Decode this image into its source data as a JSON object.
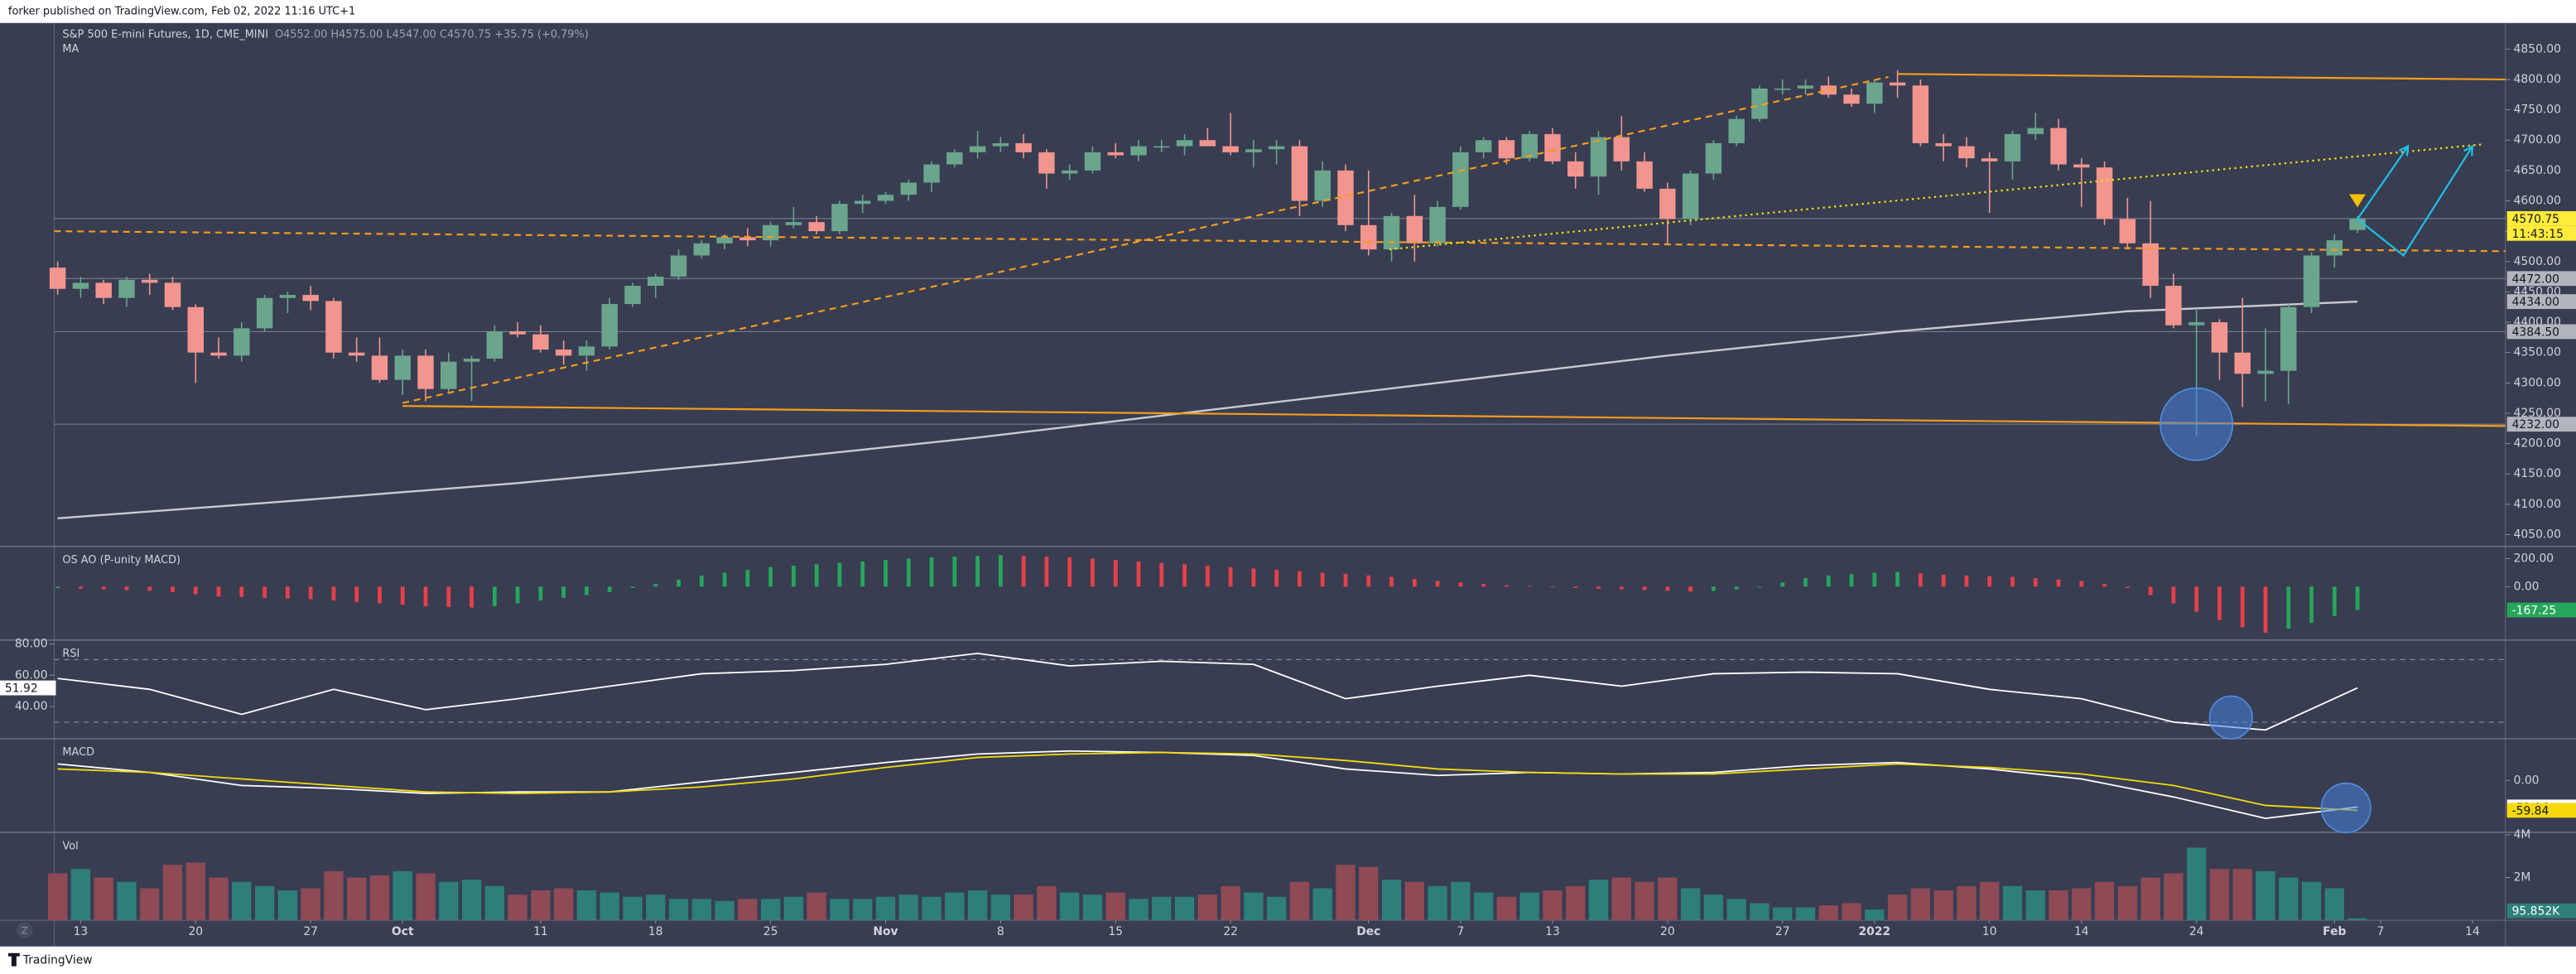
{
  "header": {
    "publisher": "forker published on TradingView.com, Feb 02, 2022 11:16 UTC+1"
  },
  "footer": {
    "brand": "TradingView",
    "zoom_button": "Z"
  },
  "chart_data": [
    {
      "type": "candlestick",
      "title": "S&P 500 E-mini Futures, 1D, CME_MINI",
      "ohlc_text": "O4552.00 H4575.00 L4547.00 C4570.75 +35.75 (+0.79%)",
      "ma_title": "MA",
      "up_color": "#6aa58c",
      "down_color": "#f2958f",
      "open": [
        4490,
        4455,
        4465,
        4440,
        4470,
        4465,
        4425,
        4350,
        4345,
        4390,
        4440,
        4445,
        4435,
        4350,
        4345,
        4305,
        4345,
        4290,
        4335,
        4340,
        4385,
        4380,
        4355,
        4345,
        4360,
        4430,
        4460,
        4475,
        4510,
        4530,
        4540,
        4535,
        4560,
        4565,
        4550,
        4595,
        4600,
        4610,
        4630,
        4660,
        4680,
        4690,
        4695,
        4680,
        4645,
        4650,
        4680,
        4675,
        4690,
        4690,
        4700,
        4690,
        4680,
        4685,
        4690,
        4600,
        4650,
        4560,
        4520,
        4575,
        4530,
        4590,
        4680,
        4700,
        4670,
        4710,
        4665,
        4640,
        4705,
        4665,
        4620,
        4570,
        4645,
        4695,
        4735,
        4785,
        4785,
        4790,
        4775,
        4760,
        4795,
        4790,
        4695,
        4690,
        4670,
        4665,
        4710,
        4720,
        4660,
        4655,
        4570,
        4530,
        4460,
        4395,
        4400,
        4350,
        4315,
        4320,
        4425,
        4510,
        4552
      ],
      "high": [
        4500,
        4475,
        4470,
        4475,
        4480,
        4475,
        4430,
        4375,
        4400,
        4445,
        4450,
        4460,
        4440,
        4375,
        4375,
        4355,
        4355,
        4350,
        4345,
        4395,
        4400,
        4395,
        4370,
        4370,
        4440,
        4465,
        4480,
        4520,
        4535,
        4545,
        4555,
        4565,
        4590,
        4575,
        4600,
        4610,
        4615,
        4635,
        4665,
        4685,
        4715,
        4705,
        4710,
        4685,
        4660,
        4690,
        4695,
        4700,
        4700,
        4710,
        4720,
        4745,
        4700,
        4700,
        4700,
        4665,
        4660,
        4650,
        4580,
        4610,
        4600,
        4690,
        4705,
        4705,
        4715,
        4720,
        4680,
        4715,
        4740,
        4680,
        4630,
        4650,
        4700,
        4740,
        4790,
        4800,
        4800,
        4805,
        4785,
        4800,
        4815,
        4800,
        4710,
        4705,
        4680,
        4715,
        4745,
        4735,
        4670,
        4665,
        4605,
        4600,
        4480,
        4420,
        4405,
        4440,
        4390,
        4430,
        4515,
        4545,
        4575
      ],
      "low": [
        4445,
        4440,
        4430,
        4425,
        4445,
        4420,
        4300,
        4340,
        4335,
        4385,
        4415,
        4420,
        4340,
        4335,
        4300,
        4280,
        4270,
        4285,
        4270,
        4335,
        4375,
        4350,
        4330,
        4320,
        4355,
        4425,
        4440,
        4470,
        4505,
        4520,
        4525,
        4525,
        4555,
        4545,
        4545,
        4580,
        4595,
        4600,
        4615,
        4655,
        4670,
        4680,
        4670,
        4620,
        4635,
        4645,
        4670,
        4665,
        4680,
        4675,
        4690,
        4675,
        4655,
        4660,
        4575,
        4590,
        4550,
        4510,
        4500,
        4500,
        4525,
        4585,
        4670,
        4660,
        4665,
        4660,
        4620,
        4610,
        4650,
        4615,
        4530,
        4560,
        4635,
        4690,
        4730,
        4775,
        4775,
        4770,
        4755,
        4745,
        4770,
        4690,
        4665,
        4655,
        4580,
        4635,
        4700,
        4650,
        4590,
        4560,
        4520,
        4440,
        4390,
        4212,
        4305,
        4260,
        4270,
        4265,
        4415,
        4490,
        4547
      ],
      "close": [
        4455,
        4465,
        4440,
        4470,
        4465,
        4425,
        4350,
        4345,
        4390,
        4440,
        4445,
        4435,
        4350,
        4345,
        4305,
        4345,
        4290,
        4335,
        4340,
        4385,
        4380,
        4355,
        4345,
        4360,
        4430,
        4460,
        4475,
        4510,
        4530,
        4540,
        4535,
        4560,
        4565,
        4550,
        4595,
        4600,
        4610,
        4630,
        4660,
        4680,
        4690,
        4695,
        4680,
        4645,
        4650,
        4680,
        4675,
        4690,
        4690,
        4700,
        4690,
        4680,
        4685,
        4690,
        4600,
        4650,
        4560,
        4520,
        4575,
        4530,
        4590,
        4680,
        4700,
        4670,
        4710,
        4665,
        4640,
        4705,
        4665,
        4620,
        4570,
        4645,
        4695,
        4735,
        4785,
        4785,
        4790,
        4775,
        4760,
        4795,
        4790,
        4695,
        4690,
        4670,
        4665,
        4710,
        4720,
        4660,
        4655,
        4570,
        4530,
        4460,
        4395,
        4400,
        4350,
        4315,
        4320,
        4425,
        4510,
        4535,
        4570.75
      ],
      "ma": {
        "color": "#c9cbd1",
        "x": [
          0,
          10,
          20,
          30,
          40,
          50,
          60,
          70,
          80,
          90,
          100
        ],
        "values": [
          4077,
          4105,
          4135,
          4170,
          4210,
          4255,
          4300,
          4345,
          4385,
          4418,
          4434
        ]
      },
      "xlim": [
        -0.15,
        106.43
      ],
      "xticks": [
        {
          "value": 1,
          "label": "13"
        },
        {
          "value": 6,
          "label": "20"
        },
        {
          "value": 11,
          "label": "27"
        },
        {
          "value": 15,
          "label": "Oct"
        },
        {
          "value": 21,
          "label": "11"
        },
        {
          "value": 26,
          "label": "18"
        },
        {
          "value": 31,
          "label": "25"
        },
        {
          "value": 36,
          "label": "Nov"
        },
        {
          "value": 41,
          "label": "8"
        },
        {
          "value": 46,
          "label": "15"
        },
        {
          "value": 51,
          "label": "22"
        },
        {
          "value": 57,
          "label": "Dec"
        },
        {
          "value": 61,
          "label": "7"
        },
        {
          "value": 65,
          "label": "13"
        },
        {
          "value": 70,
          "label": "20"
        },
        {
          "value": 75,
          "label": "27"
        },
        {
          "value": 79,
          "label": "2022"
        },
        {
          "value": 84,
          "label": "10"
        },
        {
          "value": 88,
          "label": "14"
        },
        {
          "value": 93,
          "label": "24"
        },
        {
          "value": 99,
          "label": "Feb"
        },
        {
          "value": 101,
          "label": "7"
        },
        {
          "value": 105,
          "label": "14"
        }
      ],
      "ylim": [
        4032,
        4893
      ],
      "yticks": [
        {
          "value": 4050,
          "label": "4050.00"
        },
        {
          "value": 4100,
          "label": "4100.00"
        },
        {
          "value": 4150,
          "label": "4150.00"
        },
        {
          "value": 4200,
          "label": "4200.00"
        },
        {
          "value": 4250,
          "label": "4250.00"
        },
        {
          "value": 4300,
          "label": "4300.00"
        },
        {
          "value": 4350,
          "label": "4350.00"
        },
        {
          "value": 4400,
          "label": "4400.00"
        },
        {
          "value": 4450,
          "label": "4450.00"
        },
        {
          "value": 4500,
          "label": "4500.00"
        },
        {
          "value": 4550,
          "label": "4550.00"
        },
        {
          "value": 4600,
          "label": "4600.00"
        },
        {
          "value": 4650,
          "label": "4650.00"
        },
        {
          "value": 4700,
          "label": "4700.00"
        },
        {
          "value": 4750,
          "label": "4750.00"
        },
        {
          "value": 4800,
          "label": "4800.00"
        },
        {
          "value": 4850,
          "label": "4850.00"
        }
      ],
      "levels": [
        4570.75,
        4472,
        4384.5,
        4232
      ],
      "price_labels": [
        {
          "value": 4570.75,
          "label": "4570.75",
          "color": "#ffeb3b"
        },
        {
          "value": 4472,
          "label": "4472.00",
          "color": "#b2b5be"
        },
        {
          "value": 4434,
          "label": "4434.00",
          "color": "#b2b5be"
        },
        {
          "value": 4384.5,
          "label": "4384.50",
          "color": "#b2b5be"
        },
        {
          "value": 4232,
          "label": "4232.00",
          "color": "#b2b5be"
        }
      ],
      "countdown": "11:43:15",
      "drawings": [
        {
          "style": "solid",
          "color": "#f59c1a",
          "x": [
            80,
            106.43
          ],
          "y": [
            4809,
            4800
          ]
        },
        {
          "style": "solid",
          "color": "#f59c1a",
          "x": [
            15,
            106.43
          ],
          "y": [
            4262,
            4229
          ]
        },
        {
          "style": "dashed",
          "color": "#f59c1a",
          "x": [
            -0.15,
            106.43
          ],
          "y": [
            4550,
            4517
          ]
        },
        {
          "style": "dashed",
          "color": "#f59c1a",
          "x": [
            15,
            79.6
          ],
          "y": [
            4267,
            4804
          ]
        },
        {
          "style": "dotted",
          "color": "#f5e10a",
          "x": [
            57.9,
            105.4
          ],
          "y": [
            4520,
            4693
          ]
        },
        {
          "style": "arrow",
          "color": "#1fc1e8",
          "x": [
            100,
            102.2
          ],
          "y": [
            4570,
            4690
          ]
        },
        {
          "style": "arrow",
          "color": "#1fc1e8",
          "x": [
            100,
            102,
            105
          ],
          "y": [
            4570,
            4510,
            4690
          ]
        }
      ],
      "circles": [
        {
          "x": 93,
          "y": 4232
        }
      ],
      "marker": {
        "x": 100,
        "y": 4600,
        "color": "#f5c000"
      }
    },
    {
      "type": "bar",
      "title": "OS AO (P-unity MACD)",
      "up_color": "#26a65b",
      "down_color": "#e8404a",
      "values": [
        -10,
        -15,
        -20,
        -25,
        -30,
        -40,
        -55,
        -70,
        -75,
        -80,
        -85,
        -90,
        -100,
        -110,
        -120,
        -130,
        -140,
        -145,
        -150,
        -140,
        -120,
        -100,
        -80,
        -60,
        -40,
        -10,
        20,
        50,
        80,
        100,
        120,
        140,
        150,
        160,
        170,
        180,
        190,
        200,
        210,
        215,
        220,
        225,
        220,
        215,
        210,
        200,
        190,
        180,
        170,
        160,
        150,
        140,
        130,
        120,
        110,
        100,
        90,
        80,
        70,
        55,
        40,
        30,
        20,
        10,
        5,
        -5,
        -10,
        -15,
        -20,
        -25,
        -30,
        -35,
        -30,
        -20,
        0,
        30,
        60,
        80,
        90,
        100,
        105,
        95,
        85,
        80,
        75,
        70,
        60,
        50,
        40,
        20,
        -10,
        -60,
        -120,
        -180,
        -240,
        -290,
        -330,
        -300,
        -260,
        -210,
        -167.25
      ],
      "ylim": [
        -365,
        282
      ],
      "yticks": [
        {
          "value": 0,
          "label": "0.00"
        },
        {
          "value": 200,
          "label": "200.00"
        }
      ]
    },
    {
      "type": "line",
      "title": "RSI",
      "x": [
        0,
        4,
        8,
        12,
        16,
        20,
        24,
        28,
        32,
        36,
        40,
        44,
        48,
        52,
        56,
        60,
        64,
        68,
        72,
        76,
        80,
        84,
        88,
        92,
        96,
        100
      ],
      "series": [
        {
          "color": "#ffffff",
          "values": [
            58,
            51,
            35,
            51,
            38,
            45,
            53,
            61,
            63,
            67,
            74,
            66,
            69,
            67,
            45,
            53,
            60,
            53,
            61,
            62,
            61,
            51,
            45,
            30,
            25,
            51.92
          ]
        }
      ],
      "bands": [
        70,
        30
      ],
      "ylim": [
        21,
        82
      ],
      "yticks": [
        {
          "value": 80,
          "label": "80.00"
        },
        {
          "value": 60,
          "label": "60.00"
        },
        {
          "value": 40,
          "label": "40.00"
        }
      ],
      "circles": [
        {
          "x": 94.5,
          "y": 33
        }
      ]
    },
    {
      "type": "line",
      "title": "MACD",
      "x": [
        0,
        4,
        8,
        12,
        16,
        20,
        24,
        28,
        32,
        36,
        40,
        44,
        48,
        52,
        56,
        60,
        64,
        68,
        72,
        76,
        80,
        84,
        88,
        92,
        96,
        100
      ],
      "series": [
        {
          "color": "#ffffff",
          "values": [
            33,
            16,
            -10,
            -16,
            -26,
            -23,
            -23,
            -3,
            16,
            36,
            53,
            59,
            56,
            50,
            23,
            10,
            16,
            13,
            16,
            30,
            36,
            23,
            3,
            -33,
            -76,
            -53.16
          ]
        },
        {
          "color": "#f5d90a",
          "values": [
            23,
            16,
            3,
            -10,
            -23,
            -26,
            -23,
            -13,
            3,
            26,
            46,
            53,
            56,
            53,
            40,
            23,
            16,
            13,
            13,
            23,
            33,
            26,
            13,
            -10,
            -50,
            -59.84
          ]
        }
      ],
      "ylim": [
        -99,
        82
      ],
      "yticks": [
        {
          "value": 0,
          "label": "0.00"
        }
      ],
      "circles": [
        {
          "x": 99.5,
          "y": -55
        }
      ]
    },
    {
      "type": "volume",
      "title": "Vol",
      "up_color": "#2e7f7a",
      "down_color": "#8e4a55",
      "values": [
        2200000,
        2400000,
        2000000,
        1800000,
        1500000,
        2600000,
        2700000,
        2000000,
        1800000,
        1600000,
        1400000,
        1500000,
        2300000,
        2000000,
        2100000,
        2300000,
        2200000,
        1800000,
        1900000,
        1600000,
        1200000,
        1400000,
        1500000,
        1400000,
        1300000,
        1100000,
        1200000,
        1000000,
        1000000,
        900000,
        1000000,
        1000000,
        1100000,
        1300000,
        1000000,
        1000000,
        1100000,
        1200000,
        1100000,
        1300000,
        1400000,
        1200000,
        1200000,
        1600000,
        1300000,
        1200000,
        1300000,
        1000000,
        1100000,
        1100000,
        1200000,
        1600000,
        1300000,
        1100000,
        1800000,
        1500000,
        2600000,
        2500000,
        1900000,
        1800000,
        1600000,
        1800000,
        1300000,
        1100000,
        1300000,
        1400000,
        1600000,
        1900000,
        2000000,
        1800000,
        2000000,
        1500000,
        1200000,
        1000000,
        800000,
        600000,
        600000,
        700000,
        800000,
        500000,
        1200000,
        1500000,
        1400000,
        1600000,
        1800000,
        1600000,
        1400000,
        1400000,
        1500000,
        1800000,
        1600000,
        2000000,
        2200000,
        3400000,
        2400000,
        2400000,
        2300000,
        2000000,
        1800000,
        1500000,
        95852
      ],
      "last_value_label": "95.852K",
      "ylim": [
        0,
        4080000
      ],
      "yticks": [
        {
          "value": 4000000,
          "label": "4M"
        },
        {
          "value": 2000000,
          "label": "2M"
        }
      ]
    }
  ]
}
